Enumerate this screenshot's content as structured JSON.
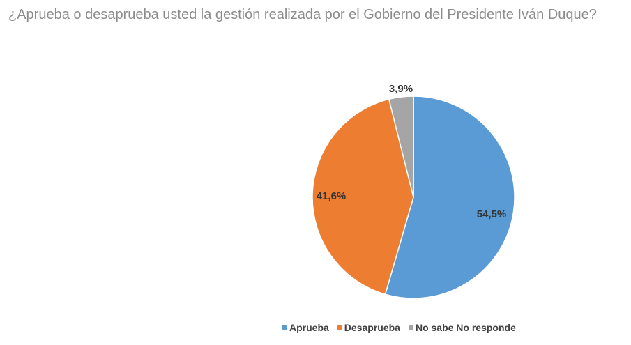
{
  "chart_data": {
    "type": "pie",
    "title": "¿Aprueba o desaprueba usted la gestión realizada por el Gobierno del Presidente Iván Duque?",
    "categories": [
      "Aprueba",
      "Desaprueba",
      "No sabe No responde"
    ],
    "values": [
      54.5,
      41.6,
      3.9
    ],
    "labels": [
      "54,5%",
      "41,6%",
      "3,9%"
    ],
    "colors": [
      "#5b9bd5",
      "#ed7d31",
      "#a5a5a5"
    ],
    "legend_position": "bottom"
  }
}
